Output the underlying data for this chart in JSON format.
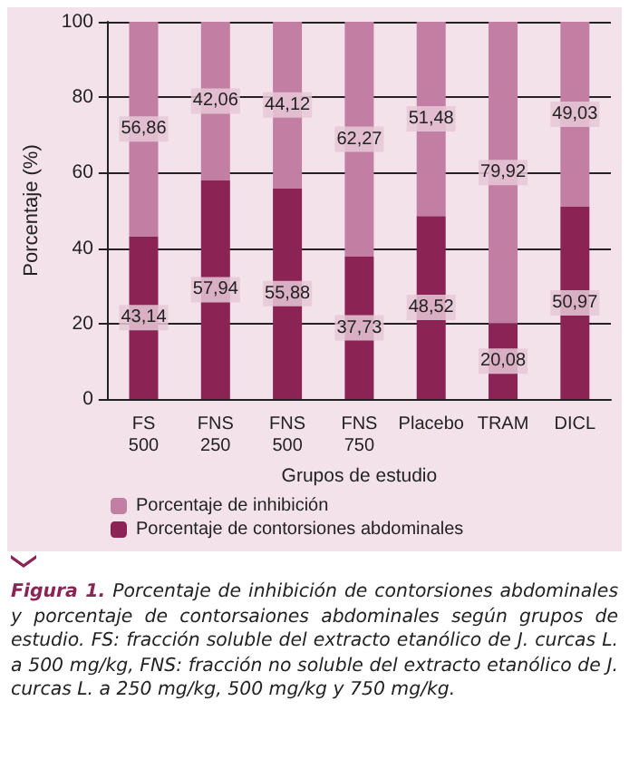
{
  "chart_data": {
    "type": "bar",
    "stacked": true,
    "xlabel": "Grupos de estudio",
    "ylabel": "Porcentaje (%)",
    "categories": [
      "FS 500",
      "FNS 250",
      "FNS 500",
      "FNS 750",
      "Placebo",
      "TRAM",
      "DICL"
    ],
    "series": [
      {
        "name": "Porcentaje de contorsiones abdominales",
        "color": "#8b2455",
        "values": [
          43.14,
          57.94,
          55.88,
          37.73,
          48.52,
          20.08,
          50.97
        ],
        "value_labels": [
          "43,14",
          "57,94",
          "55,88",
          "37,73",
          "48,52",
          "20,08",
          "50,97"
        ]
      },
      {
        "name": "Porcentaje de inhibición",
        "color": "#c27fa3",
        "values": [
          56.86,
          42.06,
          44.12,
          62.27,
          51.48,
          79.92,
          49.03
        ],
        "value_labels": [
          "56,86",
          "42,06",
          "44,12",
          "62,27",
          "51,48",
          "79,92",
          "49,03"
        ]
      }
    ],
    "ylim": [
      0,
      100
    ],
    "yticks": [
      0,
      20,
      40,
      60,
      80,
      100
    ],
    "grid": "y",
    "legend": "bottom",
    "annotations": [
      "Figura 1.  Porcentaje de inhibición de contorsiones abdominales y porcentaje de contorsaiones abdominales según grupos de estudio. FS: fracción soluble del extracto etanólico de J. curcas L. a 500 mg/kg, FNS: fracción no soluble del extracto etanólico de J. curcas L. a 250 mg/kg, 500 mg/kg y 750 mg/kg."
    ]
  }
}
